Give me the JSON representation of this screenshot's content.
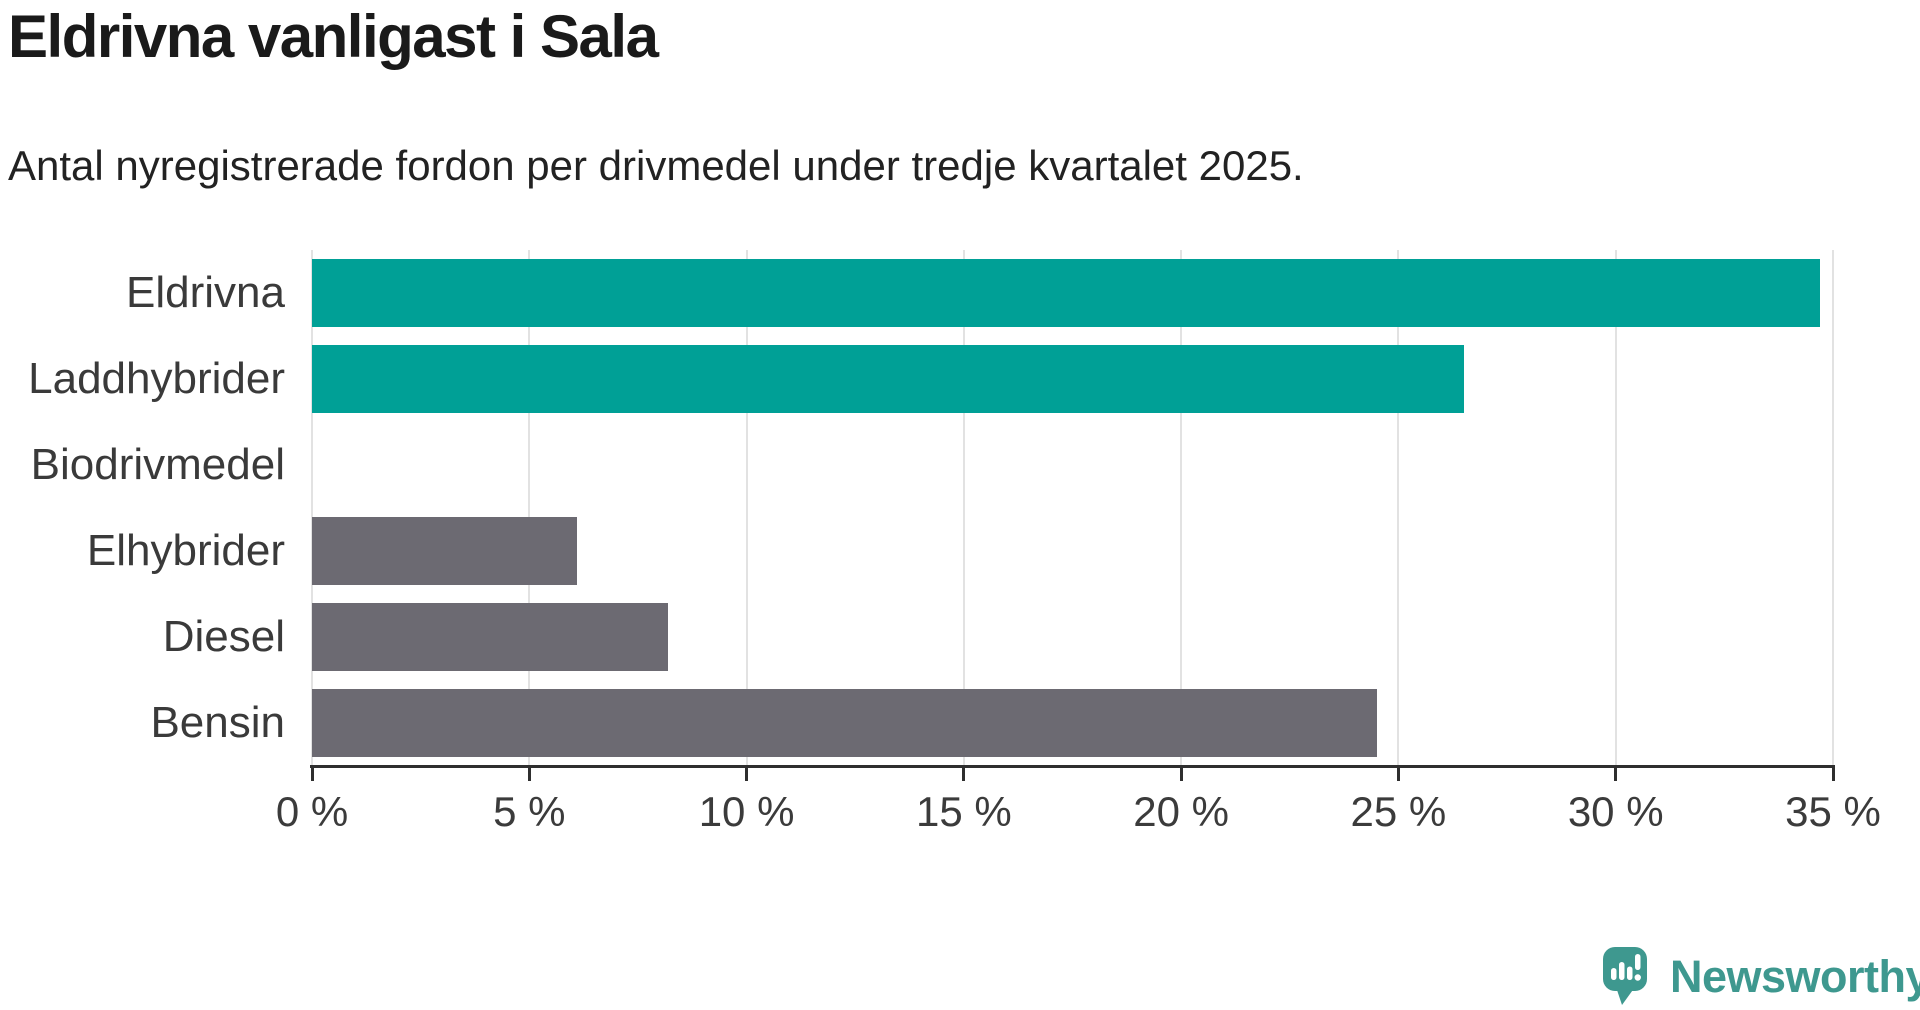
{
  "chart_data": {
    "type": "bar",
    "orientation": "horizontal",
    "title": "Eldrivna vanligast i Sala",
    "subtitle": "Antal nyregistrerade fordon per drivmedel under tredje kvartalet 2025.",
    "categories": [
      "Eldrivna",
      "Laddhybrider",
      "Biodrivmedel",
      "Elhybrider",
      "Diesel",
      "Bensin"
    ],
    "values": [
      34.7,
      26.5,
      0,
      6.1,
      8.2,
      24.5
    ],
    "unit": "%",
    "bar_colors": [
      "#00A096",
      "#00A096",
      "#00A096",
      "#6C6A72",
      "#6C6A72",
      "#6C6A72"
    ],
    "xlim": [
      0,
      35
    ],
    "x_ticks": [
      0,
      5,
      10,
      15,
      20,
      25,
      30,
      35
    ],
    "x_tick_labels": [
      "0 %",
      "5 %",
      "10 %",
      "15 %",
      "20 %",
      "25 %",
      "30 %",
      "35 %"
    ],
    "xlabel": "",
    "ylabel": "",
    "grid": "vertical-light",
    "legend": "none"
  },
  "colors": {
    "highlight_teal": "#00A096",
    "neutral_gray": "#6C6A72",
    "gridline": "#e2e2e2",
    "axis": "#2f2f2f",
    "title_text": "#1a1a1a",
    "label_text": "#3a3a3a"
  },
  "branding": {
    "wordmark": "Newsworthy",
    "icon": "newsworthy-speech-bubble-chart-icon",
    "color": "#3E988F"
  }
}
